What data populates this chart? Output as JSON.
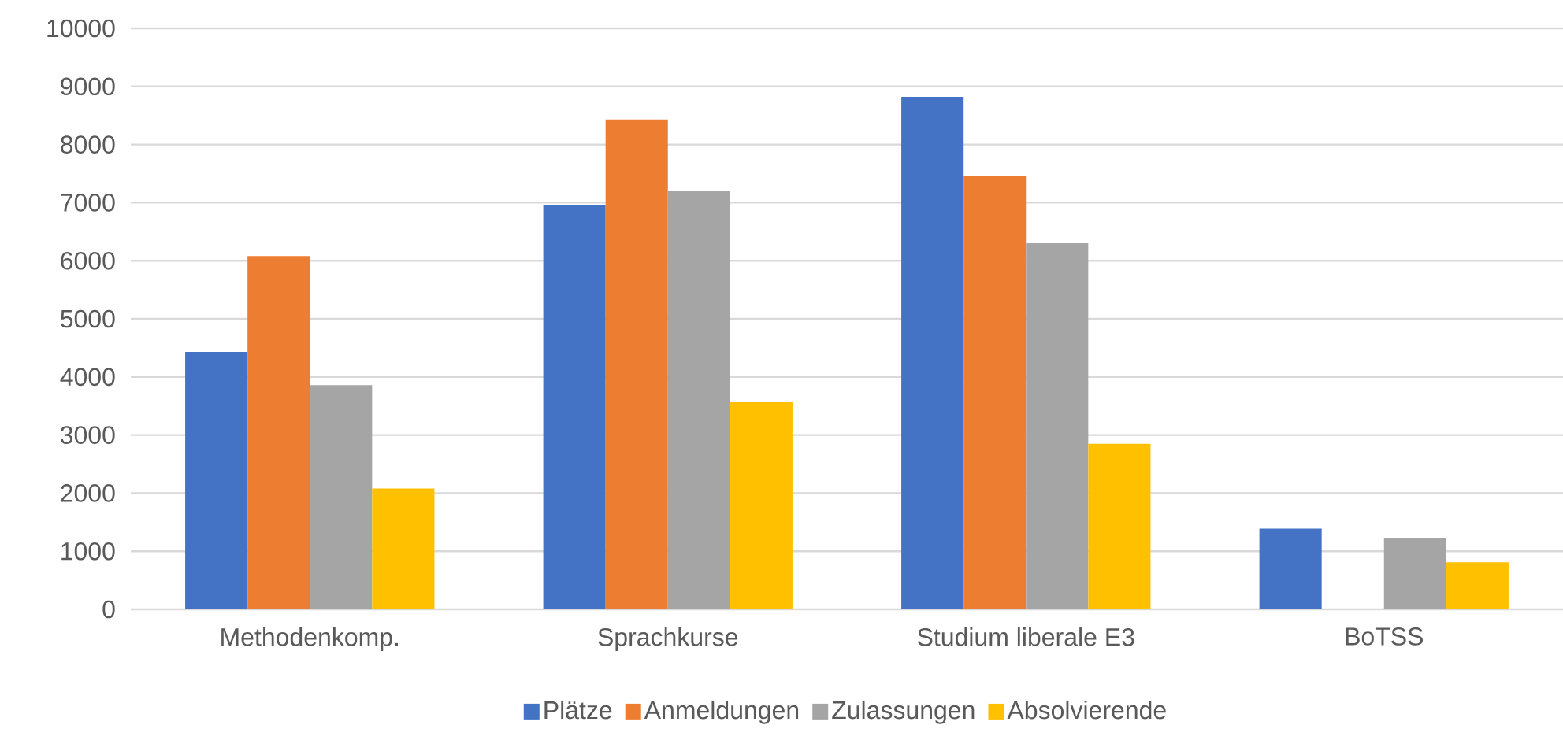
{
  "chart_data": {
    "type": "bar",
    "categories": [
      "Methodenkomp.",
      "Sprachkurse",
      "Studium liberale E3",
      "BoTSS"
    ],
    "series": [
      {
        "name": "Plätze",
        "color": "#4472c4",
        "values": [
          4430,
          6950,
          8820,
          1390
        ]
      },
      {
        "name": "Anmeldungen",
        "color": "#ed7d31",
        "values": [
          6080,
          8430,
          7460,
          null
        ]
      },
      {
        "name": "Zulassungen",
        "color": "#a5a5a5",
        "values": [
          3860,
          7200,
          6300,
          1230
        ]
      },
      {
        "name": "Absolvierende",
        "color": "#ffc000",
        "values": [
          2080,
          3570,
          2850,
          810
        ]
      }
    ],
    "ylim": [
      0,
      10000
    ],
    "yticks": [
      0,
      1000,
      2000,
      3000,
      4000,
      5000,
      6000,
      7000,
      8000,
      9000,
      10000
    ],
    "grid": "y",
    "legend": "bottom"
  }
}
